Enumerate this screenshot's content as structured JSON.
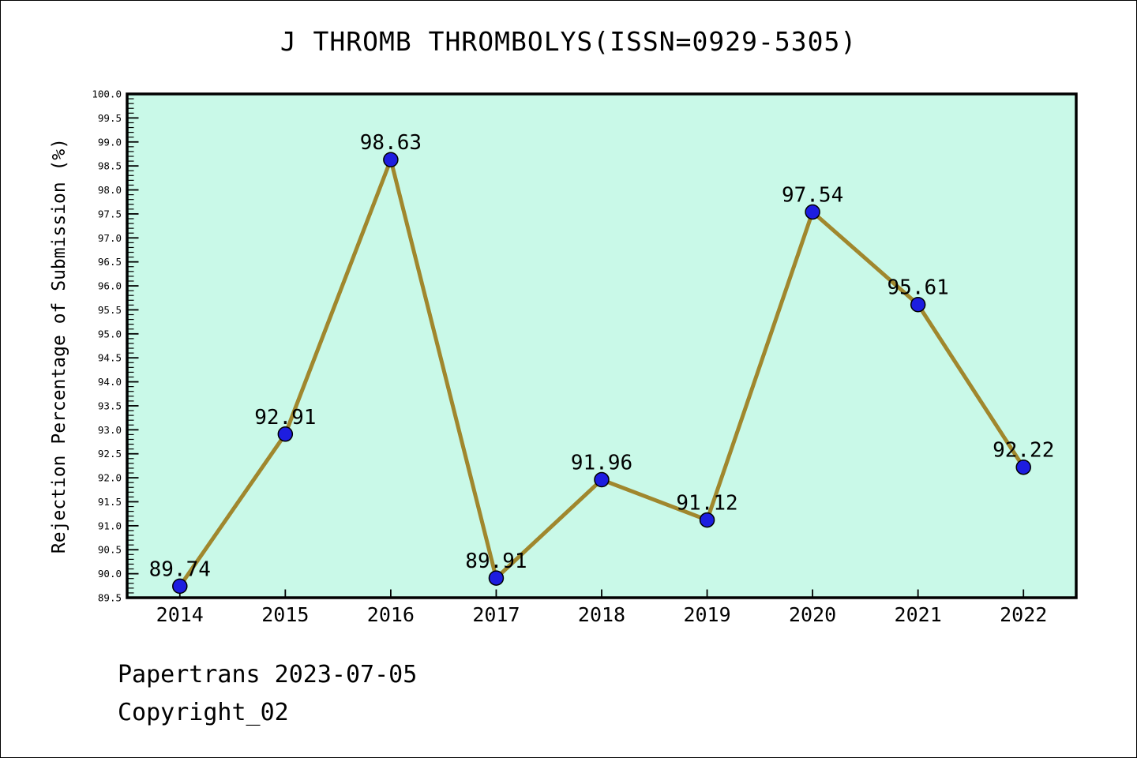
{
  "page": {
    "footer": {
      "line1": "Papertrans 2023-07-05",
      "line2": "Copyright_02"
    }
  },
  "chart_data": {
    "type": "line",
    "title": "J THROMB THROMBOLYS(ISSN=0929-5305)",
    "xlabel": "",
    "ylabel": "Rejection Percentage of Submission (%)",
    "x": [
      2014,
      2015,
      2016,
      2017,
      2018,
      2019,
      2020,
      2021,
      2022
    ],
    "values": [
      89.74,
      92.91,
      98.63,
      89.91,
      91.96,
      91.12,
      97.54,
      95.61,
      92.22
    ],
    "point_labels": [
      "89.74",
      "92.91",
      "98.63",
      "89.91",
      "91.96",
      "91.12",
      "97.54",
      "95.61",
      "92.22"
    ],
    "ylim": [
      89.5,
      100.0
    ],
    "ytick_major": 0.5,
    "ytick_minor": 0.1,
    "grid": false,
    "legend": null,
    "tick_direction": "in",
    "colors": {
      "line": "#a0872d",
      "marker_fill": "#1d1de0",
      "marker_edge": "#000000",
      "plot_background": "#c9f9e8",
      "figure_background": "#ffffff",
      "axis": "#000000",
      "text": "#000000"
    }
  }
}
